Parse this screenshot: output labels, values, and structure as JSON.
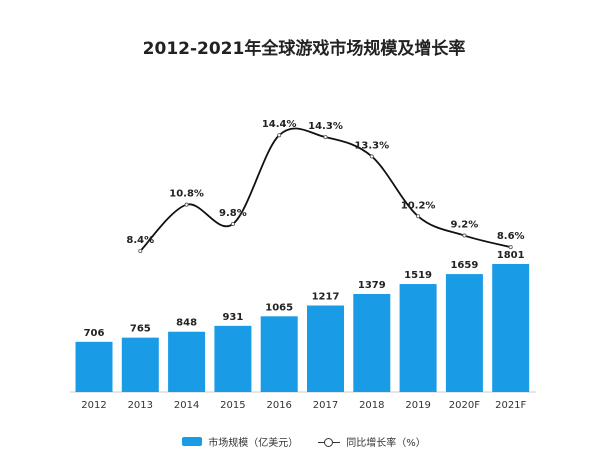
{
  "chart_data": {
    "type": "bar",
    "title": "2012-2021年全球游戏市场规模及增长率",
    "categories": [
      "2012",
      "2013",
      "2014",
      "2015",
      "2016",
      "2017",
      "2018",
      "2019",
      "2020F",
      "2021F"
    ],
    "series": [
      {
        "name": "市场规模（亿美元）",
        "type": "bar",
        "color": "#1a9be6",
        "values": [
          706,
          765,
          848,
          931,
          1065,
          1217,
          1379,
          1519,
          1659,
          1801
        ]
      },
      {
        "name": "同比增长率（%）",
        "type": "line",
        "color": "#111111",
        "values": [
          null,
          8.4,
          10.8,
          9.8,
          14.4,
          14.3,
          13.3,
          10.2,
          9.2,
          8.6
        ],
        "labels": [
          null,
          "8.4%",
          "10.8%",
          "9.8%",
          "14.4%",
          "14.3%",
          "13.3%",
          "10.2%",
          "9.2%",
          "8.6%"
        ]
      }
    ],
    "legend": "bottom",
    "grid": false
  }
}
